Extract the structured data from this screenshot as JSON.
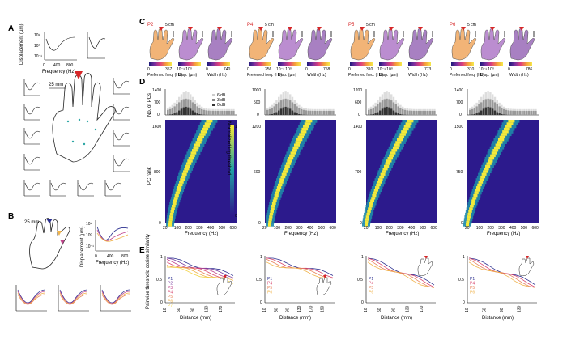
{
  "panels": {
    "A": {
      "letter": "A",
      "ylabel": "Displacement (µm)",
      "xlabel": "Frequency (Hz)",
      "yticks": [
        "10¹",
        "10⁰",
        "10⁻¹"
      ],
      "xticks": [
        "0",
        "400",
        "800"
      ],
      "scale_label": "25 mm"
    },
    "B": {
      "letter": "B",
      "ylabel": "Displacement (µm)",
      "xlabel": "Frequency (Hz)",
      "yticks": [
        "10¹",
        "10⁰",
        "10⁻¹"
      ],
      "xticks": [
        "0",
        "400",
        "800"
      ],
      "scale_label": "25 mm"
    },
    "C": {
      "letter": "C",
      "participants": [
        {
          "id": "P2",
          "scale": "5 cm",
          "freq_max": "357",
          "disp": "10⁻¹ 10⁰",
          "width_max": "740"
        },
        {
          "id": "P4",
          "scale": "5 cm",
          "freq_max": "356",
          "disp": "10⁻¹ 10⁰",
          "width_max": "758"
        },
        {
          "id": "P5",
          "scale": "5 cm",
          "freq_max": "310",
          "disp": "10⁻¹ 10⁰",
          "width_max": "773"
        },
        {
          "id": "P6",
          "scale": "5 cm",
          "freq_max": "310",
          "disp": "10⁻¹ 10⁰",
          "width_max": "786"
        }
      ],
      "colorbar_labels": [
        "Preferred freq. (Hz)",
        "Disp. (µm)",
        "Width (Hz)"
      ],
      "zero": "0"
    },
    "D": {
      "letter": "D",
      "hist_ylabel": "No. of PCs",
      "heat_ylabel": "PC rank",
      "xlabel": "Frequency (Hz)",
      "colorbar_label": "Normalized log threshold",
      "colorbar_ticks": [
        "0",
        "1"
      ],
      "legend": [
        "6 dB",
        "3 dB",
        "0 dB"
      ],
      "xticks": [
        "20",
        "100",
        "200",
        "300",
        "400",
        "500",
        "600"
      ],
      "columns": [
        {
          "hist_ticks": [
            "0",
            "700",
            "1400"
          ],
          "rank_ticks": [
            "0",
            "800",
            "1600"
          ]
        },
        {
          "hist_ticks": [
            "0",
            "500",
            "1000"
          ],
          "rank_ticks": [
            "0",
            "600",
            "1200"
          ]
        },
        {
          "hist_ticks": [
            "0",
            "600",
            "1200"
          ],
          "rank_ticks": [
            "0",
            "700",
            "1400"
          ]
        },
        {
          "hist_ticks": [
            "0",
            "700",
            "1400"
          ],
          "rank_ticks": [
            "0",
            "750",
            "1500"
          ]
        }
      ]
    },
    "E": {
      "letter": "E",
      "ylabel": "Pairwise threshold cosine similarity",
      "xlabel": "Distance (mm)",
      "yticks": [
        "0",
        "0.5",
        "1"
      ],
      "columns": [
        {
          "xticks": [
            "10",
            "50",
            "90",
            "130",
            "170"
          ],
          "legend": [
            "P1",
            "P2",
            "P3",
            "P4",
            "P5",
            "P6",
            "P7"
          ]
        },
        {
          "xticks": [
            "10",
            "50",
            "90",
            "130",
            "170",
            "190"
          ],
          "legend": [
            "P1",
            "P4",
            "P5",
            "P6"
          ]
        },
        {
          "xticks": [
            "10",
            "50",
            "90",
            "130",
            "170"
          ],
          "legend": [
            "P1",
            "P4",
            "P5",
            "P6"
          ]
        },
        {
          "xticks": [
            "10",
            "50",
            "90",
            "130"
          ],
          "legend": [
            "P1",
            "P4",
            "P5",
            "P6"
          ]
        }
      ]
    }
  },
  "colors": {
    "P1": "#2b2f8f",
    "P2": "#7b3fa0",
    "P3": "#c1448c",
    "P4": "#d9476f",
    "P5": "#e8835a",
    "P6": "#f0b34a",
    "P7": "#f3d54e",
    "heat_low": "#2c1a8c",
    "heat_mid": "#1aa3a8",
    "heat_high": "#f4e93a",
    "marker": "#d62728"
  }
}
